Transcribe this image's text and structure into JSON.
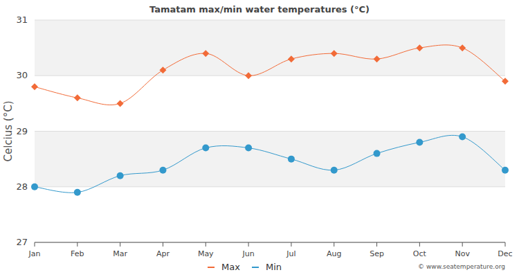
{
  "chart_data": {
    "type": "line",
    "title": "Tamatam max/min water temperatures (°C)",
    "y_label": "Celcius (°C)",
    "source": "© www.seatemperature.org",
    "categories": [
      "Jan",
      "Feb",
      "Mar",
      "Apr",
      "May",
      "Jun",
      "Jul",
      "Aug",
      "Sep",
      "Oct",
      "Nov",
      "Dec"
    ],
    "series": [
      {
        "name": "Max",
        "color": "#f26b38",
        "marker": "diamond",
        "line_style": "solid",
        "values": [
          29.8,
          29.6,
          29.5,
          30.1,
          30.4,
          30.0,
          30.3,
          30.4,
          30.3,
          30.5,
          30.5,
          29.9
        ]
      },
      {
        "name": "Min",
        "color": "#3399cc",
        "marker": "circle",
        "line_style": "solid",
        "values": [
          28.0,
          27.9,
          28.2,
          28.3,
          28.7,
          28.7,
          28.5,
          28.3,
          28.6,
          28.8,
          28.9,
          28.3
        ]
      }
    ],
    "ylim": [
      27,
      31
    ],
    "yticks": [
      27,
      28,
      29,
      30,
      31
    ],
    "grid": true,
    "legend": "bottom"
  }
}
